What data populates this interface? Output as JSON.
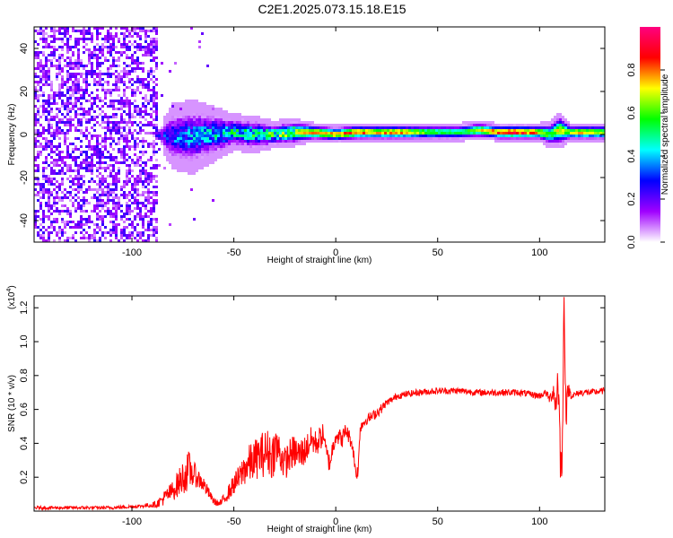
{
  "title": "C2E1.2025.073.15.18.E15",
  "chart_data": [
    {
      "type": "heatmap",
      "xlabel": "Height of straight line (km)",
      "ylabel": "Frequency (Hz)",
      "xlim": [
        -148,
        132
      ],
      "ylim": [
        -50,
        50
      ],
      "xticks": [
        -100,
        -50,
        0,
        50,
        100
      ],
      "yticks": [
        -40,
        -20,
        0,
        20,
        40
      ],
      "colorbar": {
        "label": "Normalized spectral amplitude",
        "range": [
          0,
          1
        ],
        "ticks": [
          "0.0",
          "0.2",
          "0.4",
          "0.6",
          "0.8"
        ],
        "colors": [
          "#ffffff",
          "#a000ff",
          "#0000ff",
          "#00ffff",
          "#00ff00",
          "#ffff00",
          "#ff0000",
          "#ff0080"
        ]
      },
      "ridge": {
        "x": [
          -148,
          -90,
          -80,
          -70,
          -60,
          -50,
          -40,
          -30,
          -20,
          -10,
          0,
          10,
          20,
          30,
          40,
          50,
          60,
          70,
          80,
          90,
          100,
          105,
          110,
          115,
          120,
          132
        ],
        "center_hz": [
          0,
          0,
          -1,
          -1,
          0,
          1,
          0,
          0,
          1,
          1,
          0,
          1,
          1,
          1,
          1,
          1,
          1,
          2,
          1,
          1,
          1,
          0,
          2,
          1,
          1,
          1
        ],
        "halfwidth_hz": [
          0,
          0,
          7,
          8,
          6,
          4,
          4,
          3,
          3,
          2,
          2,
          2,
          2,
          2,
          2,
          2,
          2,
          2,
          2,
          2,
          2,
          3,
          4,
          2,
          2,
          2
        ],
        "peak_amplitude": [
          0.1,
          0.2,
          0.35,
          0.4,
          0.45,
          0.5,
          0.55,
          0.6,
          0.75,
          0.85,
          0.8,
          0.9,
          0.8,
          0.85,
          0.7,
          0.6,
          0.55,
          0.75,
          0.9,
          0.95,
          0.8,
          0.6,
          0.75,
          0.7,
          0.8,
          0.75
        ]
      },
      "noise_region_x": [
        -148,
        -87
      ],
      "noise_amplitude": 0.25
    },
    {
      "type": "line",
      "xlabel": "Height of straight line (km)",
      "ylabel": "SNR (10 * v/v)",
      "yscale_label": "(x10",
      "yscale_exponent": "4",
      "xlim": [
        -148,
        132
      ],
      "ylim": [
        0,
        1.27
      ],
      "xticks": [
        -100,
        -50,
        0,
        50,
        100
      ],
      "yticks": [
        0.2,
        0.4,
        0.6,
        0.8,
        1.0,
        1.2
      ],
      "color": "#ff0000",
      "series": [
        {
          "x": [
            -148,
            -130,
            -110,
            -95,
            -88,
            -85,
            -80,
            -75,
            -72,
            -70,
            -68,
            -65,
            -62,
            -60,
            -57,
            -55,
            -52,
            -50,
            -47,
            -45,
            -42,
            -40,
            -37,
            -35,
            -33,
            -31,
            -30,
            -28,
            -25,
            -22,
            -20,
            -18,
            -15,
            -12,
            -10,
            -8,
            -6,
            -5,
            -3,
            0,
            3,
            5,
            8,
            10,
            11,
            12,
            15,
            18,
            20,
            22,
            25,
            28,
            30,
            35,
            40,
            50,
            60,
            70,
            80,
            90,
            95,
            100,
            103,
            105,
            107,
            108,
            109,
            110,
            111,
            112,
            113,
            114,
            116,
            120,
            125,
            132
          ],
          "y": [
            0.02,
            0.02,
            0.02,
            0.03,
            0.04,
            0.07,
            0.12,
            0.2,
            0.24,
            0.22,
            0.2,
            0.16,
            0.1,
            0.06,
            0.04,
            0.07,
            0.12,
            0.16,
            0.2,
            0.25,
            0.28,
            0.3,
            0.33,
            0.34,
            0.35,
            0.32,
            0.38,
            0.36,
            0.28,
            0.34,
            0.35,
            0.33,
            0.36,
            0.42,
            0.4,
            0.42,
            0.46,
            0.36,
            0.28,
            0.46,
            0.42,
            0.48,
            0.4,
            0.22,
            0.24,
            0.5,
            0.54,
            0.56,
            0.58,
            0.6,
            0.64,
            0.66,
            0.68,
            0.69,
            0.7,
            0.71,
            0.71,
            0.7,
            0.7,
            0.7,
            0.69,
            0.68,
            0.7,
            0.66,
            0.72,
            0.6,
            0.82,
            0.4,
            0.2,
            1.27,
            0.56,
            0.72,
            0.68,
            0.7,
            0.7,
            0.71
          ],
          "noise": [
            0.01,
            0.01,
            0.01,
            0.01,
            0.02,
            0.04,
            0.06,
            0.1,
            0.12,
            0.08,
            0.06,
            0.05,
            0.03,
            0.02,
            0.02,
            0.03,
            0.05,
            0.06,
            0.08,
            0.1,
            0.12,
            0.12,
            0.13,
            0.14,
            0.14,
            0.14,
            0.14,
            0.12,
            0.1,
            0.1,
            0.1,
            0.1,
            0.09,
            0.08,
            0.08,
            0.08,
            0.06,
            0.06,
            0.06,
            0.06,
            0.05,
            0.05,
            0.04,
            0.04,
            0.04,
            0.04,
            0.03,
            0.03,
            0.03,
            0.03,
            0.02,
            0.02,
            0.02,
            0.02,
            0.02,
            0.02,
            0.02,
            0.02,
            0.02,
            0.02,
            0.02,
            0.02,
            0.02,
            0.03,
            0.06,
            0.1,
            0.15,
            0.2,
            0.1,
            0.1,
            0.1,
            0.05,
            0.02,
            0.02,
            0.02,
            0.02
          ]
        }
      ]
    }
  ]
}
